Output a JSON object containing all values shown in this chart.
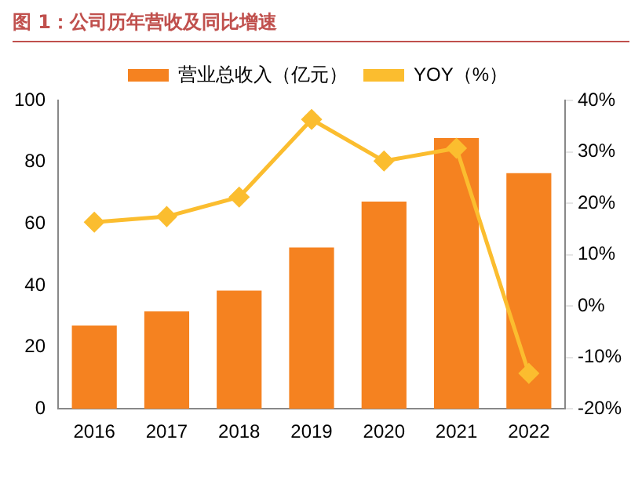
{
  "chart_data": {
    "type": "bar",
    "title": "图 1：公司历年营收及同比增速",
    "categories": [
      "2016",
      "2017",
      "2018",
      "2019",
      "2020",
      "2021",
      "2022"
    ],
    "series": [
      {
        "name": "营业总收入（亿元）",
        "color": "#f58220",
        "values": [
          27,
          31.6,
          38.3,
          52.3,
          67.2,
          87.8,
          76.4
        ]
      },
      {
        "name": "YOY（%）",
        "type": "line",
        "axis": "y2",
        "color": "#fbbd2f",
        "marker": "diamond",
        "values": [
          16.3,
          17.4,
          21.2,
          36.3,
          28.2,
          30.7,
          -13.1
        ]
      }
    ],
    "ylim": [
      0,
      100
    ],
    "yticks": [
      0,
      20,
      40,
      60,
      80,
      100
    ],
    "y2lim": [
      -20,
      40
    ],
    "y2ticks": [
      {
        "value": -20,
        "label": "-20%"
      },
      {
        "value": -10,
        "label": "-10%"
      },
      {
        "value": 0,
        "label": "0%"
      },
      {
        "value": 10,
        "label": "10%"
      },
      {
        "value": 20,
        "label": "20%"
      },
      {
        "value": 30,
        "label": "30%"
      },
      {
        "value": 40,
        "label": "40%"
      }
    ],
    "grid": false,
    "legend": "top"
  }
}
